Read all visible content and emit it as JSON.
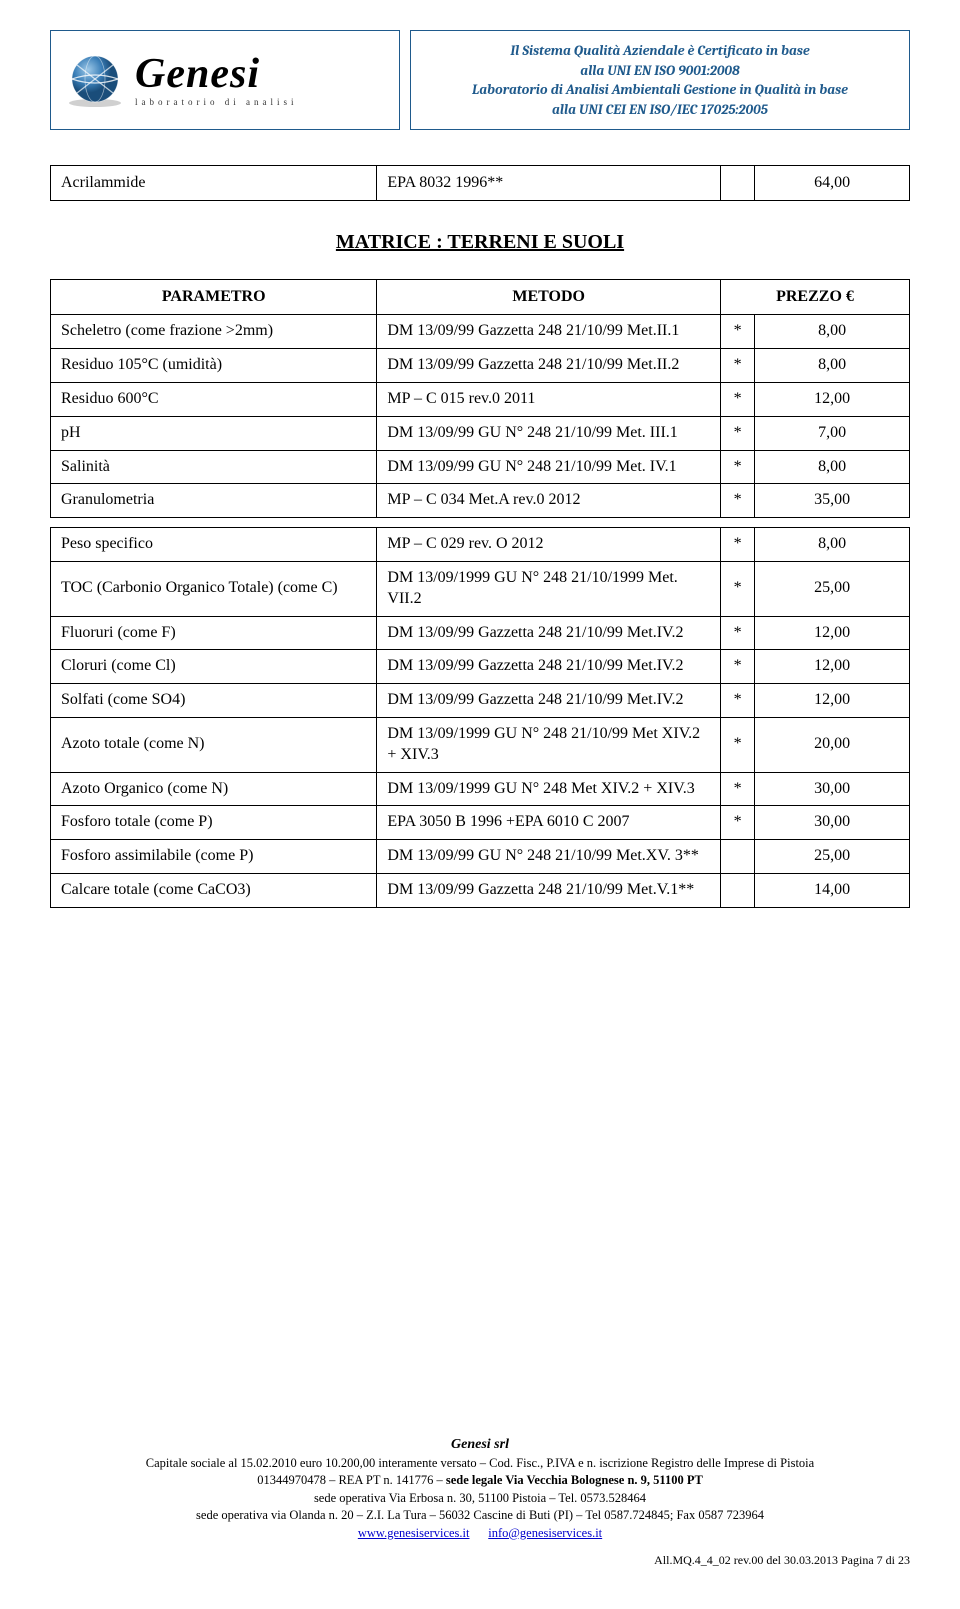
{
  "header": {
    "brand": "Genesi",
    "tagline": "laboratorio di analisi",
    "cert_lines": [
      "Il Sistema Qualità Aziendale è Certificato in base",
      "alla UNI EN  ISO 9001:2008",
      "Laboratorio di Analisi Ambientali Gestione in Qualità in base",
      "alla UNI CEI EN ISO/IEC 17025:2005"
    ]
  },
  "single_row": {
    "param": "Acrilammide",
    "method": "EPA 8032 1996**",
    "mark": "",
    "price": "64,00"
  },
  "section_title": "MATRICE : TERRENI E SUOLI",
  "columns": [
    "PARAMETRO",
    "METODO",
    "PREZZO €"
  ],
  "rows_a": [
    {
      "param": "Scheletro (come frazione >2mm)",
      "method": "DM 13/09/99 Gazzetta 248 21/10/99 Met.II.1",
      "mark": "*",
      "price": "8,00"
    },
    {
      "param": "Residuo 105°C (umidità)",
      "method": "DM 13/09/99 Gazzetta 248 21/10/99 Met.II.2",
      "mark": "*",
      "price": "8,00"
    },
    {
      "param": "Residuo 600°C",
      "method": "MP – C 015 rev.0 2011",
      "mark": "*",
      "price": "12,00"
    },
    {
      "param": "pH",
      "method": "DM 13/09/99 GU N° 248 21/10/99 Met. III.1",
      "mark": "*",
      "price": "7,00"
    },
    {
      "param": "Salinità",
      "method": "DM 13/09/99 GU N° 248 21/10/99 Met. IV.1",
      "mark": "*",
      "price": "8,00"
    },
    {
      "param": "Granulometria",
      "method": "MP – C 034 Met.A rev.0 2012",
      "mark": "*",
      "price": "35,00"
    }
  ],
  "rows_b": [
    {
      "param": "Peso specifico",
      "method": "MP – C 029 rev. O 2012",
      "mark": "*",
      "price": "8,00"
    },
    {
      "param": "TOC (Carbonio Organico Totale) (come C)",
      "method": "DM 13/09/1999 GU N° 248 21/10/1999 Met. VII.2",
      "mark": "*",
      "price": "25,00"
    },
    {
      "param": "Fluoruri (come F)",
      "method": "DM 13/09/99 Gazzetta 248 21/10/99 Met.IV.2",
      "mark": "*",
      "price": "12,00"
    },
    {
      "param": "Cloruri (come Cl)",
      "method": "DM 13/09/99 Gazzetta 248 21/10/99 Met.IV.2",
      "mark": "*",
      "price": "12,00"
    },
    {
      "param": "Solfati (come SO4)",
      "method": "DM 13/09/99 Gazzetta 248 21/10/99 Met.IV.2",
      "mark": "*",
      "price": "12,00"
    },
    {
      "param": "Azoto totale (come N)",
      "method": "DM 13/09/1999 GU N° 248 21/10/99 Met XIV.2 + XIV.3",
      "mark": "*",
      "price": "20,00"
    },
    {
      "param": "Azoto Organico (come N)",
      "method": "DM 13/09/1999 GU N° 248 Met XIV.2 + XIV.3",
      "mark": "*",
      "price": "30,00"
    },
    {
      "param": "Fosforo totale (come P)",
      "method": "EPA 3050 B 1996 +EPA 6010 C 2007",
      "mark": "*",
      "price": "30,00"
    },
    {
      "param": "Fosforo assimilabile (come P)",
      "method": "DM 13/09/99 GU N° 248 21/10/99 Met.XV. 3**",
      "mark": "",
      "price": "25,00"
    },
    {
      "param": "Calcare totale (come CaCO3)",
      "method": "DM 13/09/99 Gazzetta 248 21/10/99 Met.V.1**",
      "mark": "",
      "price": "14,00"
    }
  ],
  "footer": {
    "srl": "Genesi srl",
    "line1": "Capitale sociale al 15.02.2010 euro 10.200,00 interamente versato – Cod. Fisc., P.IVA e n. iscrizione Registro delle Imprese di Pistoia",
    "line2_a": "01344970478 – REA PT n. 141776 – ",
    "line2_b": "sede legale Via Vecchia Bolognese n. 9,  51100 PT",
    "line3": "sede operativa Via Erbosa n. 30, 51100 Pistoia – Tel. 0573.528464",
    "line4": "sede operativa via Olanda n. 20 – Z.I. La Tura – 56032 Cascine di Buti (PI) – Tel 0587.724845; Fax 0587 723964",
    "link1": "www.genesiservices.it",
    "link2": "info@genesiservices.it",
    "pagenum": "All.MQ.4_4_02  rev.00 del 30.03.2013  Pagina 7 di 23"
  },
  "colors": {
    "border": "#1f5a8c",
    "text_accent": "#1f5a8c",
    "globe_light": "#5a9fd4",
    "globe_dark": "#2e6ca8"
  }
}
